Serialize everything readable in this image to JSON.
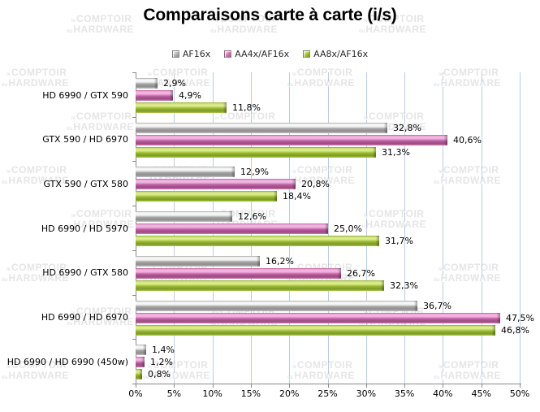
{
  "title": "Comparaisons carte à carte (i/s)",
  "watermark": {
    "line1_small": "le",
    "line1": "COMPTOIR",
    "line2_small": "du",
    "line2": "HARDWARE"
  },
  "colors": {
    "series_gray": "#b3b3b3",
    "series_pink": "#cf74b4",
    "series_green": "#a2c037",
    "gridline": "#b9cde5",
    "axis": "#8a8a8a",
    "title_text": "#000000"
  },
  "chart_data": {
    "type": "bar",
    "orientation": "horizontal",
    "title": "Comparaisons carte à carte (i/s)",
    "categories": [
      "HD 6990 / GTX 590",
      "GTX 590 / HD 6970",
      "GTX 590 / GTX 580",
      "HD 6990 / HD 5970",
      "HD 6990 / GTX 580",
      "HD 6990 / HD 6970",
      "HD 6990 / HD 6990 (450w)"
    ],
    "series": [
      {
        "name": "AF16x",
        "color": "#b3b3b3",
        "values": [
          2.9,
          32.8,
          12.9,
          12.6,
          16.2,
          36.7,
          1.4
        ],
        "labels": [
          "2,9%",
          "32,8%",
          "12,9%",
          "12,6%",
          "16,2%",
          "36,7%",
          "1,4%"
        ]
      },
      {
        "name": "AA4x/AF16x",
        "color": "#cf74b4",
        "values": [
          4.9,
          40.6,
          20.8,
          25.0,
          26.7,
          47.5,
          1.2
        ],
        "labels": [
          "4,9%",
          "40,6%",
          "20,8%",
          "25,0%",
          "26,7%",
          "47,5%",
          "1,2%"
        ]
      },
      {
        "name": "AA8x/AF16x",
        "color": "#a2c037",
        "values": [
          11.8,
          31.3,
          18.4,
          31.7,
          32.3,
          46.8,
          0.8
        ],
        "labels": [
          "11,8%",
          "31,3%",
          "18,4%",
          "31,7%",
          "32,3%",
          "46,8%",
          "0,8%"
        ]
      }
    ],
    "xlim": [
      0,
      50
    ],
    "x_ticks": [
      "0%",
      "5%",
      "10%",
      "15%",
      "20%",
      "25%",
      "30%",
      "35%",
      "40%",
      "45%",
      "50%"
    ],
    "xlabel": "",
    "ylabel": "",
    "grid": true,
    "legend_position": "top"
  }
}
